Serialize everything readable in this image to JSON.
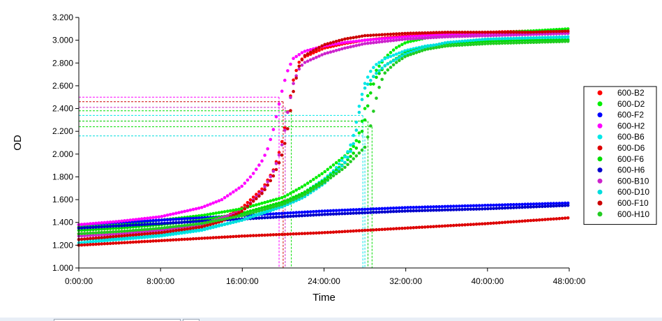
{
  "chart_data": {
    "type": "scatter",
    "xlabel": "Time",
    "ylabel": "OD",
    "xlim": [
      0,
      48
    ],
    "ylim": [
      1.0,
      3.2
    ],
    "x_unit": "hours",
    "x_ticks": [
      "0:00:00",
      "8:00:00",
      "16:00:00",
      "24:00:00",
      "32:00:00",
      "40:00:00",
      "48:00:00"
    ],
    "y_ticks": [
      "1.000",
      "1.200",
      "1.400",
      "1.600",
      "1.800",
      "2.000",
      "2.200",
      "2.400",
      "2.600",
      "2.800",
      "3.000",
      "3.200"
    ],
    "legend_position": "right",
    "series": [
      {
        "name": "600-B2",
        "color": "#ff0000",
        "points": [
          [
            0,
            1.3
          ],
          [
            4,
            1.32
          ],
          [
            8,
            1.34
          ],
          [
            12,
            1.38
          ],
          [
            14,
            1.43
          ],
          [
            16,
            1.53
          ],
          [
            18,
            1.7
          ],
          [
            19,
            1.85
          ],
          [
            19.5,
            1.98
          ],
          [
            20,
            2.15
          ],
          [
            20.5,
            2.4
          ],
          [
            21,
            2.65
          ],
          [
            21.5,
            2.8
          ],
          [
            22,
            2.85
          ],
          [
            24,
            2.93
          ],
          [
            26,
            2.97
          ],
          [
            28,
            3.0
          ],
          [
            30,
            3.02
          ],
          [
            32,
            3.04
          ],
          [
            36,
            3.06
          ],
          [
            40,
            3.07
          ],
          [
            44,
            3.08
          ],
          [
            48,
            3.08
          ]
        ]
      },
      {
        "name": "600-D2",
        "color": "#00ee00",
        "points": [
          [
            0,
            1.36
          ],
          [
            4,
            1.38
          ],
          [
            8,
            1.42
          ],
          [
            12,
            1.46
          ],
          [
            16,
            1.52
          ],
          [
            20,
            1.62
          ],
          [
            22,
            1.72
          ],
          [
            24,
            1.84
          ],
          [
            26,
            1.98
          ],
          [
            27,
            2.08
          ],
          [
            27.5,
            2.2
          ],
          [
            28,
            2.4
          ],
          [
            28.5,
            2.6
          ],
          [
            29,
            2.72
          ],
          [
            30,
            2.85
          ],
          [
            31,
            2.93
          ],
          [
            32,
            2.98
          ],
          [
            34,
            3.02
          ],
          [
            36,
            3.04
          ],
          [
            40,
            3.06
          ],
          [
            44,
            3.08
          ],
          [
            48,
            3.1
          ]
        ]
      },
      {
        "name": "600-F2",
        "color": "#0000ff",
        "points": [
          [
            0,
            1.38
          ],
          [
            8,
            1.42
          ],
          [
            16,
            1.46
          ],
          [
            24,
            1.5
          ],
          [
            32,
            1.53
          ],
          [
            40,
            1.55
          ],
          [
            48,
            1.57
          ]
        ]
      },
      {
        "name": "600-H2",
        "color": "#ff00ff",
        "points": [
          [
            0,
            1.38
          ],
          [
            4,
            1.41
          ],
          [
            8,
            1.45
          ],
          [
            12,
            1.53
          ],
          [
            14,
            1.6
          ],
          [
            16,
            1.72
          ],
          [
            17,
            1.82
          ],
          [
            18,
            1.95
          ],
          [
            18.5,
            2.05
          ],
          [
            19,
            2.2
          ],
          [
            19.5,
            2.4
          ],
          [
            20,
            2.6
          ],
          [
            20.5,
            2.75
          ],
          [
            21,
            2.84
          ],
          [
            22,
            2.9
          ],
          [
            24,
            2.95
          ],
          [
            26,
            2.98
          ],
          [
            28,
            3.0
          ],
          [
            32,
            3.03
          ],
          [
            36,
            3.05
          ],
          [
            40,
            3.06
          ],
          [
            44,
            3.06
          ],
          [
            48,
            3.07
          ]
        ]
      },
      {
        "name": "600-B6",
        "color": "#00e8e8",
        "points": [
          [
            0,
            1.22
          ],
          [
            4,
            1.25
          ],
          [
            8,
            1.28
          ],
          [
            12,
            1.33
          ],
          [
            16,
            1.42
          ],
          [
            20,
            1.56
          ],
          [
            22,
            1.66
          ],
          [
            24,
            1.78
          ],
          [
            25,
            1.86
          ],
          [
            26,
            1.97
          ],
          [
            26.5,
            2.05
          ],
          [
            27,
            2.2
          ],
          [
            27.5,
            2.45
          ],
          [
            28,
            2.62
          ],
          [
            28.5,
            2.72
          ],
          [
            29,
            2.78
          ],
          [
            30,
            2.84
          ],
          [
            32,
            2.91
          ],
          [
            34,
            2.95
          ],
          [
            36,
            2.97
          ],
          [
            40,
            2.99
          ],
          [
            44,
            3.0
          ],
          [
            48,
            3.01
          ]
        ]
      },
      {
        "name": "600-D6",
        "color": "#dd0000",
        "points": [
          [
            0,
            1.2
          ],
          [
            8,
            1.24
          ],
          [
            16,
            1.28
          ],
          [
            24,
            1.31
          ],
          [
            32,
            1.35
          ],
          [
            40,
            1.39
          ],
          [
            48,
            1.44
          ]
        ]
      },
      {
        "name": "600-F6",
        "color": "#00dd00",
        "points": [
          [
            0,
            1.33
          ],
          [
            4,
            1.35
          ],
          [
            8,
            1.38
          ],
          [
            12,
            1.42
          ],
          [
            16,
            1.48
          ],
          [
            20,
            1.58
          ],
          [
            22,
            1.66
          ],
          [
            24,
            1.77
          ],
          [
            26,
            1.92
          ],
          [
            27,
            2.02
          ],
          [
            27.5,
            2.12
          ],
          [
            28,
            2.3
          ],
          [
            28.5,
            2.52
          ],
          [
            29,
            2.66
          ],
          [
            30,
            2.78
          ],
          [
            32,
            2.89
          ],
          [
            34,
            2.94
          ],
          [
            36,
            2.97
          ],
          [
            40,
            2.99
          ],
          [
            44,
            3.0
          ],
          [
            48,
            3.0
          ]
        ]
      },
      {
        "name": "600-H6",
        "color": "#0000cc",
        "points": [
          [
            0,
            1.35
          ],
          [
            8,
            1.39
          ],
          [
            16,
            1.43
          ],
          [
            24,
            1.47
          ],
          [
            32,
            1.5
          ],
          [
            40,
            1.52
          ],
          [
            48,
            1.55
          ]
        ]
      },
      {
        "name": "600-B10",
        "color": "#cc22cc",
        "points": [
          [
            0,
            1.28
          ],
          [
            4,
            1.3
          ],
          [
            8,
            1.33
          ],
          [
            12,
            1.38
          ],
          [
            16,
            1.5
          ],
          [
            18,
            1.68
          ],
          [
            19,
            1.84
          ],
          [
            19.5,
            1.96
          ],
          [
            20,
            2.12
          ],
          [
            20.5,
            2.4
          ],
          [
            21,
            2.62
          ],
          [
            21.5,
            2.74
          ],
          [
            22,
            2.8
          ],
          [
            24,
            2.88
          ],
          [
            26,
            2.93
          ],
          [
            28,
            2.97
          ],
          [
            32,
            3.01
          ],
          [
            36,
            3.03
          ],
          [
            40,
            3.04
          ],
          [
            44,
            3.05
          ],
          [
            48,
            3.06
          ]
        ]
      },
      {
        "name": "600-D10",
        "color": "#00dddd",
        "points": [
          [
            0,
            1.25
          ],
          [
            4,
            1.26
          ],
          [
            8,
            1.29
          ],
          [
            12,
            1.34
          ],
          [
            16,
            1.42
          ],
          [
            20,
            1.54
          ],
          [
            22,
            1.62
          ],
          [
            24,
            1.74
          ],
          [
            25,
            1.82
          ],
          [
            26,
            1.92
          ],
          [
            26.5,
            2.0
          ],
          [
            27,
            2.12
          ],
          [
            27.5,
            2.4
          ],
          [
            28,
            2.58
          ],
          [
            29,
            2.7
          ],
          [
            30,
            2.78
          ],
          [
            32,
            2.88
          ],
          [
            34,
            2.94
          ],
          [
            36,
            2.98
          ],
          [
            40,
            3.01
          ],
          [
            44,
            3.02
          ],
          [
            48,
            3.03
          ]
        ]
      },
      {
        "name": "600-F10",
        "color": "#cc0000",
        "points": [
          [
            0,
            1.25
          ],
          [
            4,
            1.28
          ],
          [
            8,
            1.31
          ],
          [
            12,
            1.36
          ],
          [
            14,
            1.41
          ],
          [
            16,
            1.5
          ],
          [
            18,
            1.66
          ],
          [
            19,
            1.8
          ],
          [
            19.5,
            1.9
          ],
          [
            20,
            2.02
          ],
          [
            20.5,
            2.25
          ],
          [
            21,
            2.55
          ],
          [
            21.5,
            2.76
          ],
          [
            22,
            2.86
          ],
          [
            24,
            2.96
          ],
          [
            26,
            3.01
          ],
          [
            28,
            3.04
          ],
          [
            32,
            3.06
          ],
          [
            36,
            3.07
          ],
          [
            40,
            3.07
          ],
          [
            44,
            3.07
          ],
          [
            48,
            3.08
          ]
        ]
      },
      {
        "name": "600-H10",
        "color": "#22cc22",
        "points": [
          [
            0,
            1.3
          ],
          [
            4,
            1.32
          ],
          [
            8,
            1.35
          ],
          [
            12,
            1.39
          ],
          [
            16,
            1.46
          ],
          [
            20,
            1.56
          ],
          [
            22,
            1.64
          ],
          [
            24,
            1.75
          ],
          [
            26,
            1.88
          ],
          [
            27,
            1.97
          ],
          [
            28,
            2.06
          ],
          [
            28.5,
            2.22
          ],
          [
            29,
            2.45
          ],
          [
            29.5,
            2.62
          ],
          [
            30,
            2.72
          ],
          [
            31,
            2.8
          ],
          [
            32,
            2.86
          ],
          [
            34,
            2.92
          ],
          [
            36,
            2.95
          ],
          [
            40,
            2.97
          ],
          [
            44,
            2.98
          ],
          [
            48,
            2.99
          ]
        ]
      }
    ],
    "reference_lines": [
      {
        "color": "#ff00ff",
        "x": 19.6,
        "y": 2.5
      },
      {
        "color": "#cc0000",
        "x": 20.0,
        "y": 2.46
      },
      {
        "color": "#cc22cc",
        "x": 20.2,
        "y": 2.41
      },
      {
        "color": "#00dd00",
        "x": 20.8,
        "y": 2.38
      },
      {
        "color": "#00e8e8",
        "x": 27.8,
        "y": 2.34
      },
      {
        "color": "#00cc00",
        "x": 28.3,
        "y": 2.29
      },
      {
        "color": "#00dd00",
        "x": 28.7,
        "y": 2.24
      },
      {
        "color": "#00dddd",
        "x": 28.0,
        "y": 2.16
      }
    ]
  }
}
